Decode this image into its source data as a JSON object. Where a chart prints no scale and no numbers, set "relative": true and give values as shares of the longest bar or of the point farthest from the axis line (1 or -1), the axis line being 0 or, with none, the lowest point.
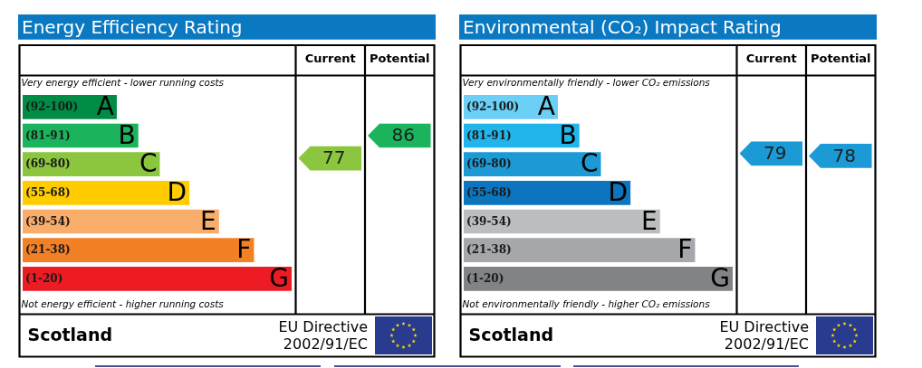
{
  "chart_data": [
    {
      "type": "bar",
      "orientation": "horizontal",
      "relative": true,
      "title": "Energy Efficiency Rating",
      "categories": [
        "(92-100)",
        "(81-91)",
        "(69-80)",
        "(55-68)",
        "(39-54)",
        "(21-38)",
        "(1-20)"
      ],
      "values": [
        0.35,
        0.43,
        0.51,
        0.62,
        0.73,
        0.86,
        1
      ],
      "colors": [
        "#008c45",
        "#1bb35b",
        "#8cc63f",
        "#ffcc00",
        "#f9ad6a",
        "#f28025",
        "#ed1c24"
      ],
      "annotations": [
        "Very energy efficient - lower running costs",
        "Not energy efficient - higher running costs",
        "Scotland",
        "EU Directive",
        "2002/91/EC",
        "Current",
        "77",
        "Potential",
        "86",
        {
          "text": "A",
          "x": 0.35,
          "y": "(92-100)"
        },
        {
          "text": "B",
          "x": 0.43,
          "y": "(81-91)"
        },
        {
          "text": "C",
          "x": 0.51,
          "y": "(69-80)"
        },
        {
          "text": "D",
          "x": 0.62,
          "y": "(55-68)"
        },
        {
          "text": "E",
          "x": 0.73,
          "y": "(39-54)"
        },
        {
          "text": "F",
          "x": 0.86,
          "y": "(21-38)"
        },
        {
          "text": "G",
          "x": 1,
          "y": "(1-20)"
        }
      ]
    },
    {
      "type": "bar",
      "orientation": "horizontal",
      "relative": true,
      "title": "Environmental (CO₂) Impact Rating",
      "categories": [
        "(92-100)",
        "(81-91)",
        "(69-80)",
        "(55-68)",
        "(39-54)",
        "(21-38)",
        "(1-20)"
      ],
      "values": [
        0.35,
        0.43,
        0.51,
        0.62,
        0.73,
        0.86,
        1
      ],
      "colors": [
        "#6bcff6",
        "#22b5eb",
        "#1c9ad6",
        "#0c75bd",
        "#bbbdbf",
        "#a5a7aa",
        "#828386"
      ],
      "annotations": [
        "Very environmentally friendly - lower CO₂ emissions",
        "Not environmentally friendly - higher CO₂ emissions",
        "Scotland",
        "EU Directive",
        "2002/91/EC",
        "Current",
        "79",
        "Potential",
        "78",
        {
          "text": "A",
          "x": 0.35,
          "y": "(92-100)"
        },
        {
          "text": "B",
          "x": 0.43,
          "y": "(81-91)"
        },
        {
          "text": "C",
          "x": 0.51,
          "y": "(69-80)"
        },
        {
          "text": "D",
          "x": 0.62,
          "y": "(55-68)"
        },
        {
          "text": "E",
          "x": 0.73,
          "y": "(39-54)"
        },
        {
          "text": "F",
          "x": 0.86,
          "y": "(21-38)"
        },
        {
          "text": "G",
          "x": 1,
          "y": "(1-20)"
        }
      ]
    }
  ]
}
